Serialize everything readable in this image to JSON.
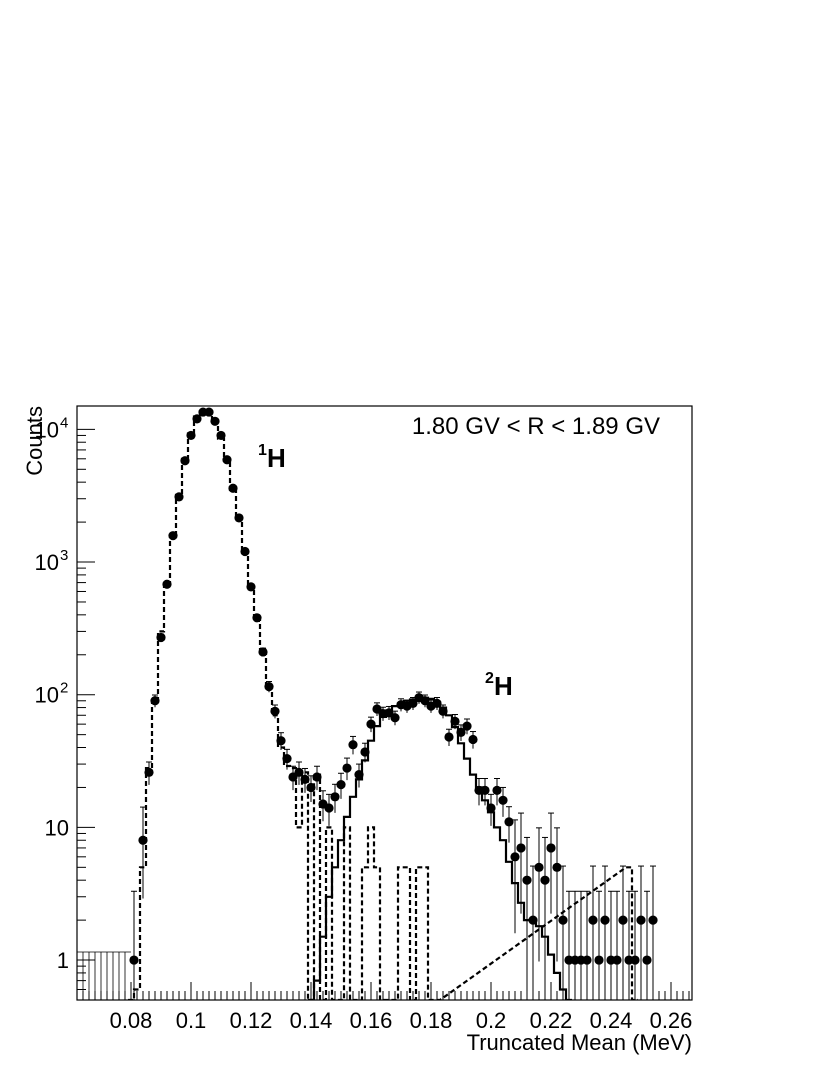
{
  "chart_data": {
    "type": "scatter",
    "xlabel": "Truncated Mean (MeV)",
    "ylabel": "Counts",
    "xlim": [
      0.062,
      0.267
    ],
    "ylim": [
      0.5,
      15000
    ],
    "yscale": "log",
    "x_ticks": [
      0.08,
      0.1,
      0.12,
      0.14,
      0.16,
      0.18,
      0.2,
      0.22,
      0.24,
      0.26
    ],
    "x_tick_labels": [
      "0.08",
      "0.1",
      "0.12",
      "0.14",
      "0.16",
      "0.18",
      "0.2",
      "0.22",
      "0.24",
      "0.26"
    ],
    "y_tick_labels": [
      {
        "value": 1,
        "base": "1",
        "exp": ""
      },
      {
        "value": 10,
        "base": "10",
        "exp": ""
      },
      {
        "value": 100,
        "base": "10",
        "exp": "2"
      },
      {
        "value": 1000,
        "base": "10",
        "exp": "3"
      },
      {
        "value": 10000,
        "base": "10",
        "exp": "4"
      }
    ],
    "annotations": {
      "rigidity": "1.80 GV < R < 1.89 GV",
      "h1": {
        "sup": "1",
        "label": "H"
      },
      "h2": {
        "sup": "2",
        "label": "H"
      }
    },
    "data_points": [
      [
        0.081,
        1
      ],
      [
        0.084,
        8
      ],
      [
        0.086,
        26
      ],
      [
        0.088,
        90
      ],
      [
        0.09,
        270
      ],
      [
        0.092,
        680
      ],
      [
        0.094,
        1580
      ],
      [
        0.096,
        3100
      ],
      [
        0.098,
        5800
      ],
      [
        0.1,
        9000
      ],
      [
        0.102,
        12000
      ],
      [
        0.104,
        13500
      ],
      [
        0.106,
        13500
      ],
      [
        0.108,
        11500
      ],
      [
        0.11,
        9000
      ],
      [
        0.112,
        5900
      ],
      [
        0.114,
        3600
      ],
      [
        0.116,
        2150
      ],
      [
        0.118,
        1200
      ],
      [
        0.12,
        650
      ],
      [
        0.122,
        380
      ],
      [
        0.124,
        210
      ],
      [
        0.126,
        115
      ],
      [
        0.128,
        75
      ],
      [
        0.13,
        45
      ],
      [
        0.132,
        33
      ],
      [
        0.134,
        24
      ],
      [
        0.136,
        26
      ],
      [
        0.138,
        23
      ],
      [
        0.14,
        20
      ],
      [
        0.142,
        24
      ],
      [
        0.144,
        15
      ],
      [
        0.146,
        14
      ],
      [
        0.148,
        17
      ],
      [
        0.15,
        21
      ],
      [
        0.152,
        28
      ],
      [
        0.154,
        42
      ],
      [
        0.156,
        25
      ],
      [
        0.158,
        37
      ],
      [
        0.16,
        60
      ],
      [
        0.162,
        78
      ],
      [
        0.164,
        72
      ],
      [
        0.166,
        73
      ],
      [
        0.168,
        67
      ],
      [
        0.17,
        84
      ],
      [
        0.172,
        82
      ],
      [
        0.174,
        86
      ],
      [
        0.176,
        95
      ],
      [
        0.178,
        90
      ],
      [
        0.18,
        82
      ],
      [
        0.182,
        86
      ],
      [
        0.184,
        75
      ],
      [
        0.186,
        48
      ],
      [
        0.188,
        63
      ],
      [
        0.19,
        52
      ],
      [
        0.192,
        58
      ],
      [
        0.194,
        46
      ],
      [
        0.196,
        19
      ],
      [
        0.198,
        19
      ],
      [
        0.2,
        14
      ],
      [
        0.202,
        19
      ],
      [
        0.204,
        16
      ],
      [
        0.206,
        11
      ],
      [
        0.208,
        6
      ],
      [
        0.21,
        7
      ],
      [
        0.212,
        4
      ],
      [
        0.214,
        2
      ],
      [
        0.216,
        5
      ],
      [
        0.218,
        4
      ],
      [
        0.22,
        7
      ],
      [
        0.222,
        5
      ],
      [
        0.224,
        2
      ],
      [
        0.226,
        1
      ],
      [
        0.228,
        1
      ],
      [
        0.23,
        1
      ],
      [
        0.232,
        1
      ],
      [
        0.234,
        2
      ],
      [
        0.236,
        1
      ],
      [
        0.238,
        2
      ],
      [
        0.24,
        1
      ],
      [
        0.242,
        1
      ],
      [
        0.244,
        2
      ],
      [
        0.246,
        1
      ],
      [
        0.248,
        1
      ],
      [
        0.25,
        2
      ],
      [
        0.252,
        1
      ],
      [
        0.254,
        2
      ]
    ],
    "proton_template": [
      [
        0.08,
        0
      ],
      [
        0.082,
        0.6
      ],
      [
        0.084,
        5
      ],
      [
        0.086,
        28
      ],
      [
        0.088,
        95
      ],
      [
        0.09,
        300
      ],
      [
        0.092,
        700
      ],
      [
        0.094,
        1600
      ],
      [
        0.096,
        3200
      ],
      [
        0.098,
        6000
      ],
      [
        0.1,
        9300
      ],
      [
        0.102,
        12500
      ],
      [
        0.104,
        14000
      ],
      [
        0.106,
        13500
      ],
      [
        0.108,
        11500
      ],
      [
        0.11,
        8500
      ],
      [
        0.112,
        5800
      ],
      [
        0.114,
        3500
      ],
      [
        0.116,
        2100
      ],
      [
        0.118,
        1200
      ],
      [
        0.12,
        650
      ],
      [
        0.122,
        360
      ],
      [
        0.124,
        200
      ],
      [
        0.126,
        110
      ],
      [
        0.128,
        70
      ],
      [
        0.13,
        40
      ],
      [
        0.132,
        29
      ],
      [
        0.134,
        28
      ],
      [
        0.136,
        10
      ],
      [
        0.138,
        26
      ],
      [
        0.14,
        0
      ],
      [
        0.142,
        25
      ],
      [
        0.144,
        0
      ],
      [
        0.146,
        10
      ],
      [
        0.148,
        0
      ],
      [
        0.15,
        0
      ],
      [
        0.152,
        10
      ],
      [
        0.154,
        0
      ],
      [
        0.156,
        0
      ],
      [
        0.158,
        5
      ],
      [
        0.16,
        10
      ],
      [
        0.162,
        5
      ],
      [
        0.164,
        0
      ],
      [
        0.166,
        0
      ],
      [
        0.168,
        0
      ],
      [
        0.17,
        5
      ],
      [
        0.172,
        5
      ],
      [
        0.174,
        0
      ],
      [
        0.176,
        5
      ],
      [
        0.178,
        5
      ],
      [
        0.18,
        0
      ],
      [
        0.182,
        0
      ],
      [
        0.246,
        5
      ],
      [
        0.248,
        0
      ]
    ],
    "deuteron_template": [
      [
        0.14,
        0
      ],
      [
        0.142,
        0.7
      ],
      [
        0.144,
        1.5
      ],
      [
        0.146,
        3
      ],
      [
        0.148,
        5
      ],
      [
        0.15,
        8
      ],
      [
        0.152,
        12
      ],
      [
        0.154,
        17
      ],
      [
        0.156,
        23
      ],
      [
        0.158,
        32
      ],
      [
        0.16,
        45
      ],
      [
        0.162,
        58
      ],
      [
        0.164,
        68
      ],
      [
        0.166,
        76
      ],
      [
        0.168,
        82
      ],
      [
        0.17,
        86
      ],
      [
        0.172,
        90
      ],
      [
        0.174,
        92
      ],
      [
        0.176,
        95
      ],
      [
        0.178,
        95
      ],
      [
        0.18,
        93
      ],
      [
        0.182,
        88
      ],
      [
        0.184,
        80
      ],
      [
        0.186,
        70
      ],
      [
        0.188,
        57
      ],
      [
        0.19,
        43
      ],
      [
        0.192,
        33
      ],
      [
        0.194,
        25
      ],
      [
        0.196,
        20
      ],
      [
        0.198,
        16
      ],
      [
        0.2,
        13
      ],
      [
        0.202,
        10
      ],
      [
        0.204,
        8
      ],
      [
        0.206,
        5.5
      ],
      [
        0.208,
        3.8
      ],
      [
        0.21,
        2.7
      ],
      [
        0.212,
        2.0
      ],
      [
        0.214,
        2.0
      ],
      [
        0.216,
        1.8
      ],
      [
        0.218,
        1.5
      ],
      [
        0.22,
        1.1
      ],
      [
        0.222,
        0.8
      ],
      [
        0.224,
        0.6
      ],
      [
        0.226,
        0.5
      ]
    ]
  }
}
